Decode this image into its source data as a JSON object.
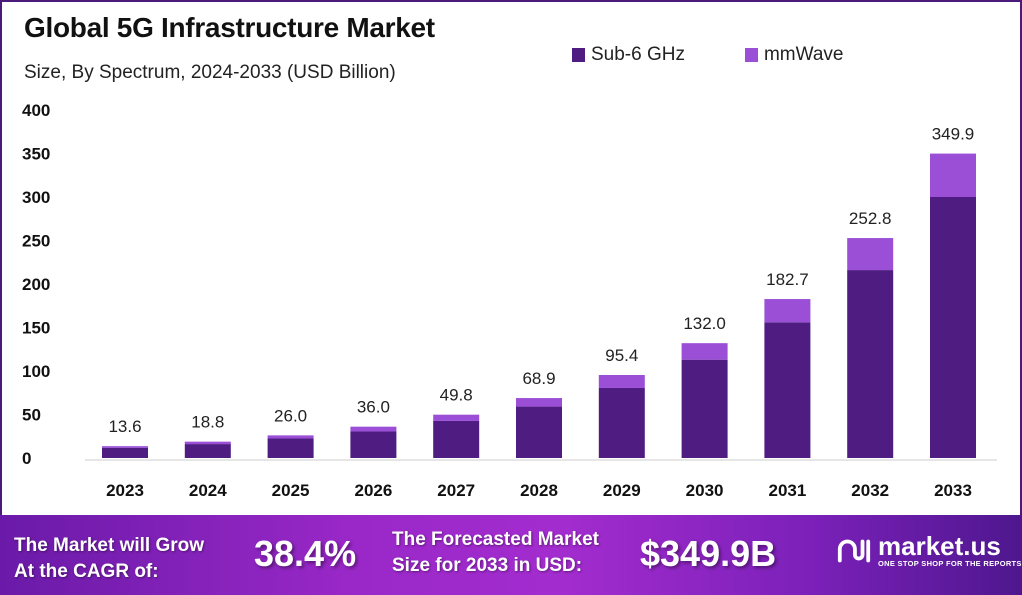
{
  "chart_data": {
    "type": "bar",
    "stacked": true,
    "title": "Global 5G Infrastructure Market",
    "subtitle": "Size, By Spectrum, 2024-2033 (USD Billion)",
    "categories": [
      "2023",
      "2024",
      "2025",
      "2026",
      "2027",
      "2028",
      "2029",
      "2030",
      "2031",
      "2032",
      "2033"
    ],
    "series": [
      {
        "name": "Sub-6 GHz",
        "color": "#4f1c82",
        "values": [
          11.6,
          16.0,
          22.4,
          30.5,
          42.6,
          59.1,
          80.5,
          113.0,
          156.0,
          216.0,
          300.0
        ]
      },
      {
        "name": "mmWave",
        "color": "#9a4fd6",
        "values": [
          2.0,
          2.8,
          3.6,
          5.5,
          7.2,
          9.8,
          14.9,
          19.0,
          26.7,
          36.8,
          49.9
        ]
      }
    ],
    "totals": [
      "13.6",
      "18.8",
      "26.0",
      "36.0",
      "49.8",
      "68.9",
      "95.4",
      "132.0",
      "182.7",
      "252.8",
      "349.9"
    ],
    "ylim": [
      0,
      400
    ],
    "yticks": [
      "0",
      "50",
      "100",
      "150",
      "200",
      "250",
      "300",
      "350",
      "400"
    ],
    "xlabel": "",
    "ylabel": "",
    "grid": false,
    "legend": "top-right"
  },
  "footer": {
    "cagr_label_1": "The Market will Grow",
    "cagr_label_2": "At the CAGR of:",
    "cagr_value": "38.4%",
    "forecast_label_1": "The Forecasted Market",
    "forecast_label_2": "Size for 2033 in USD:",
    "forecast_value": "$349.9B",
    "brand": "market.us",
    "brand_tagline": "ONE STOP SHOP FOR THE REPORTS"
  }
}
